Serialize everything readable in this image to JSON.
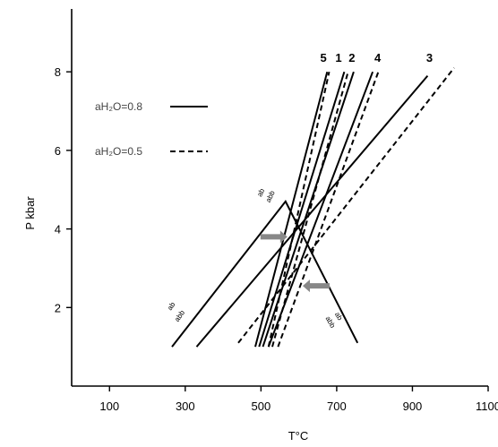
{
  "chart_data": {
    "type": "line",
    "xlabel": "T°C",
    "ylabel": "P kbar",
    "xlim": [
      0,
      1100
    ],
    "ylim": [
      0,
      9.6
    ],
    "x_ticks": [
      100,
      300,
      500,
      700,
      900,
      1100
    ],
    "y_ticks": [
      2,
      4,
      6,
      8
    ],
    "grid": false,
    "legend": {
      "placement": "top-left",
      "entries": [
        {
          "label": "aH₂O=0.8",
          "style": "solid"
        },
        {
          "label": "aH₂O=0.5",
          "style": "dashed"
        }
      ]
    },
    "series": [
      {
        "name": "5",
        "style": "solid",
        "points": [
          [
            485,
            1.0
          ],
          [
            675,
            8.0
          ]
        ]
      },
      {
        "name": "1",
        "style": "solid",
        "points": [
          [
            495,
            1.0
          ],
          [
            720,
            8.0
          ]
        ]
      },
      {
        "name": "2",
        "style": "solid",
        "points": [
          [
            505,
            1.0
          ],
          [
            745,
            8.0
          ]
        ]
      },
      {
        "name": "4",
        "style": "solid",
        "points": [
          [
            520,
            1.0
          ],
          [
            795,
            8.0
          ]
        ]
      },
      {
        "name": "3",
        "style": "solid",
        "points": [
          [
            330,
            1.0
          ],
          [
            940,
            7.9
          ]
        ]
      },
      {
        "style": "solid",
        "points": [
          [
            265,
            1.0
          ],
          [
            565,
            4.7
          ],
          [
            755,
            1.1
          ]
        ]
      },
      {
        "style": "dashed",
        "points": [
          [
            520,
            1.0
          ],
          [
            680,
            8.0
          ]
        ]
      },
      {
        "style": "dashed",
        "points": [
          [
            530,
            1.0
          ],
          [
            730,
            8.0
          ]
        ]
      },
      {
        "style": "dashed",
        "points": [
          [
            545,
            1.0
          ],
          [
            810,
            8.0
          ]
        ]
      },
      {
        "style": "dashed",
        "points": [
          [
            440,
            1.1
          ],
          [
            1010,
            8.1
          ]
        ]
      }
    ],
    "annotations": [
      {
        "text": "5",
        "x": 665,
        "y": 8.25,
        "kind": "curve-label"
      },
      {
        "text": "1",
        "x": 705,
        "y": 8.25,
        "kind": "curve-label"
      },
      {
        "text": "2",
        "x": 740,
        "y": 8.25,
        "kind": "curve-label"
      },
      {
        "text": "4",
        "x": 808,
        "y": 8.25,
        "kind": "curve-label"
      },
      {
        "text": "3",
        "x": 945,
        "y": 8.25,
        "kind": "curve-label"
      }
    ],
    "rotated_labels": [
      {
        "text": "ab",
        "x": 505,
        "y": 4.9,
        "angle": -65
      },
      {
        "text": "abb",
        "x": 530,
        "y": 4.8,
        "angle": -65
      },
      {
        "text": "ab",
        "x": 268,
        "y": 2.0,
        "angle": -55
      },
      {
        "text": "abb",
        "x": 290,
        "y": 1.75,
        "angle": -55
      },
      {
        "text": "ab",
        "x": 700,
        "y": 1.75,
        "angle": 60
      },
      {
        "text": "abb",
        "x": 678,
        "y": 1.6,
        "angle": 60
      }
    ],
    "arrows": [
      {
        "x": 565,
        "y": 3.8,
        "direction": "right"
      },
      {
        "x": 615,
        "y": 2.55,
        "direction": "left"
      }
    ]
  }
}
